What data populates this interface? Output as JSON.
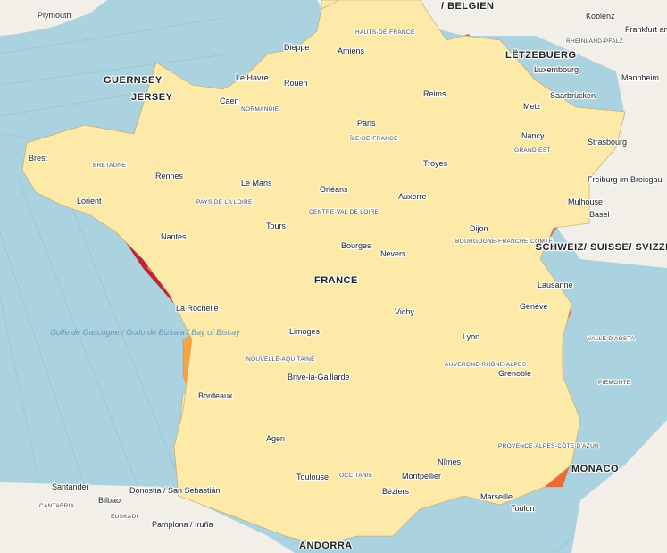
{
  "colors": {
    "sea": "#aad3df",
    "land": "#f2efe9",
    "light": "#fde9a8",
    "yellow": "#fdd36a",
    "orange": "#f9a33f",
    "red_orange": "#ef6a2c",
    "crimson": "#c1213b"
  },
  "countries": {
    "france": "FRANCE",
    "belgium": "/ BELGIEN",
    "luxembourg": "LËTZEBUERG",
    "switzerland": "SCHWEIZ/ SUISSE/ SVIZZERA/ SVIZRA",
    "monaco": "MONACO",
    "andorra": "ANDORRA",
    "guernsey": "GUERNSEY",
    "jersey": "JERSEY"
  },
  "regions": {
    "normandie": "NORMANDIE",
    "bretagne": "BRETAGNE",
    "hauts_de_france": "HAUTS-DE-FRANCE",
    "ile_de_france": "ÎLE-DE-FRANCE",
    "grand_est": "GRAND EST",
    "pays_de_la_loire": "PAYS DE LA LOIRE",
    "centre_val_de_loire": "CENTRE-VAL DE LOIRE",
    "bourgogne": "BOURGOGNE-FRANCHE-COMTÉ",
    "nouvelle_aquitaine": "NOUVELLE-AQUITAINE",
    "auvergne": "AUVERGNE-RHÔNE-ALPES",
    "occitanie": "OCCITANIE",
    "paca": "PROVENCE-ALPES-CÔTE D'AZUR",
    "rheinland": "RHEINLAND-PFALZ",
    "valle_aosta": "VALLE D'AOSTA",
    "piemonte": "PIEMONTE",
    "cantabria": "CANTABRIA",
    "euskadi": "EUSKADI"
  },
  "cities": {
    "plymouth": "Plymouth",
    "dieppe": "Dieppe",
    "amiens": "Amiens",
    "le_havre": "Le Havre",
    "rouen": "Rouen",
    "caen": "Caen",
    "paris": "Paris",
    "reims": "Reims",
    "metz": "Metz",
    "nancy": "Nancy",
    "strasbourg": "Strasbourg",
    "luxembourg": "Luxembourg",
    "saarbrucken": "Saarbrücken",
    "koblenz": "Koblenz",
    "frankfurt": "Frankfurt am Main",
    "mannheim": "Mannheim",
    "freiburg": "Freiburg im Breisgau",
    "mulhouse": "Mulhouse",
    "basel": "Basel",
    "brest": "Brest",
    "rennes": "Rennes",
    "lorient": "Lorient",
    "le_mans": "Le Mans",
    "orleans": "Orléans",
    "troyes": "Troyes",
    "auxerre": "Auxerre",
    "dijon": "Dijon",
    "tours": "Tours",
    "nantes": "Nantes",
    "bourges": "Bourges",
    "nevers": "Nevers",
    "lausanne": "Lausanne",
    "geneve": "Genève",
    "la_rochelle": "La Rochelle",
    "limoges": "Limoges",
    "vichy": "Vichy",
    "lyon": "Lyon",
    "brive": "Brive-la-Gaillarde",
    "grenoble": "Grenoble",
    "bordeaux": "Bordeaux",
    "agen": "Agen",
    "toulouse": "Toulouse",
    "nimes": "Nîmes",
    "montpellier": "Montpellier",
    "marseille": "Marseille",
    "toulon": "Toulon",
    "beziers": "Béziers",
    "santander": "Santander",
    "bilbao": "Bilbao",
    "donostia": "Donostia / San Sebastián",
    "pamplona": "Pamplona / Iruña"
  },
  "sea_label": "Golfe de Gascogne / Golfo de Bizkaia / Bay of Biscay"
}
